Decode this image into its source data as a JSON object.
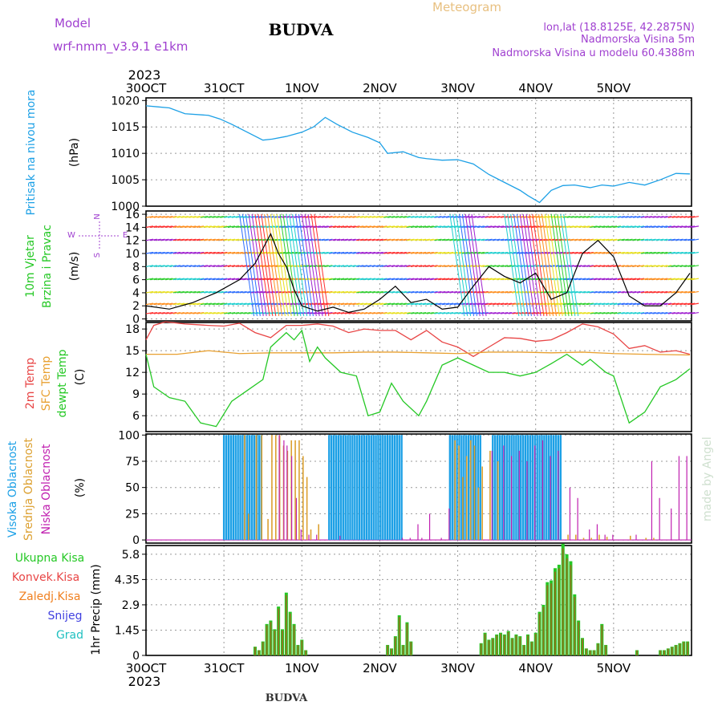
{
  "header": {
    "model_label": "Model",
    "model_name": "wrf-nmm_v3.9.1  e1km",
    "city": "BUDVA",
    "meteogram": "Meteogram",
    "lonlat": "lon,lat (18.8125E, 42.2875N)",
    "elev": "Nadmorska Visina 5m",
    "elev_model": "Nadmorska Visina u modelu 60.4388m",
    "year_top": "2023",
    "year_bottom": "2023",
    "footer": "BUDVA",
    "watermark": "made by Angel"
  },
  "colors": {
    "pressure": "#1ca0e6",
    "t2m": "#e84545",
    "sfc": "#e8a030",
    "dew": "#25c825",
    "high_cloud": "#1ca0e6",
    "mid_cloud": "#dca030",
    "low_cloud": "#c020b0",
    "precip_total": "#25c825",
    "precip_conv": "#e84545",
    "precip_frz": "#f08020",
    "snow": "#4040e0",
    "grad": "#20c0c0",
    "model": "#a040d0",
    "meteogram": "#e8c080"
  },
  "chart_data": {
    "type": "line",
    "x_labels": [
      "30OCT",
      "31OCT",
      "1NOV",
      "2NOV",
      "3NOV",
      "4NOV",
      "5NOV"
    ],
    "x_unit": "days from 30OCT 2023 00UTC",
    "panels": [
      {
        "id": "pressure",
        "ylabel": [
          "Pritisak na nivou mora",
          "(hPa)"
        ],
        "yticks": [
          "1000",
          "1005",
          "1010",
          "1015",
          "1020"
        ],
        "ylim": [
          1000,
          1020.5
        ],
        "series": [
          {
            "name": "Pritisak na nivou mora",
            "x": [
              0,
              0.15,
              0.3,
              0.5,
              0.8,
              0.95,
              1.1,
              1.3,
              1.5,
              1.62,
              1.8,
              2.0,
              2.15,
              2.3,
              2.45,
              2.65,
              2.85,
              3.0,
              3.1,
              3.3,
              3.5,
              3.6,
              3.8,
              4.0,
              4.2,
              4.4,
              4.6,
              4.8,
              4.9,
              5.05,
              5.2,
              5.35,
              5.5,
              5.7,
              5.85,
              6.0,
              6.2,
              6.4,
              6.6,
              6.8,
              6.98
            ],
            "y": [
              1019,
              1018.8,
              1018.6,
              1017.5,
              1017.2,
              1016.5,
              1015.5,
              1014,
              1012.5,
              1012.7,
              1013.2,
              1014,
              1015,
              1016.8,
              1015.5,
              1014,
              1013,
              1012,
              1010,
              1010.3,
              1009.2,
              1009,
              1008.7,
              1008.8,
              1008,
              1006,
              1004.5,
              1003,
              1002,
              1000.7,
              1003,
              1003.9,
              1004,
              1003.5,
              1004,
              1003.8,
              1004.5,
              1004,
              1005,
              1006.2,
              1006.1
            ]
          }
        ]
      },
      {
        "id": "wind",
        "ylabel": [
          "10m Vjetar",
          "Brzina i Pravac",
          "(m/s)"
        ],
        "compass": [
          "N",
          "S",
          "E",
          "W"
        ],
        "yticks": [
          "0",
          "2",
          "4",
          "6",
          "8",
          "10",
          "12",
          "14",
          "16"
        ],
        "ylim": [
          -0.3,
          16.5
        ],
        "series": [
          {
            "name": "speed",
            "x": [
              0,
              0.3,
              0.6,
              0.9,
              1.2,
              1.4,
              1.6,
              1.7,
              1.8,
              1.9,
              2.0,
              2.2,
              2.4,
              2.6,
              2.8,
              3.0,
              3.2,
              3.4,
              3.6,
              3.8,
              4.0,
              4.2,
              4.4,
              4.6,
              4.8,
              5.0,
              5.2,
              5.4,
              5.6,
              5.8,
              6.0,
              6.2,
              6.4,
              6.6,
              6.8,
              6.98
            ],
            "y": [
              2,
              1.5,
              2.5,
              4,
              6,
              8.5,
              13,
              10,
              8,
              4.5,
              2,
              1.2,
              1.8,
              1,
              1.5,
              3,
              5,
              2.5,
              3,
              1.5,
              1.8,
              5,
              8,
              6.5,
              5.5,
              7,
              3,
              4,
              10,
              12,
              9.5,
              3.5,
              2,
              2,
              4,
              7
            ]
          }
        ]
      },
      {
        "id": "temp",
        "ylabel": [
          "2m Temp",
          "SFC Temp",
          "dewpt Temp",
          "(C)"
        ],
        "yticks": [
          "6",
          "9",
          "12",
          "15",
          "18"
        ],
        "ylim": [
          3.8,
          18.9
        ],
        "series": [
          {
            "name": "2m Temp",
            "x": [
              0,
              0.1,
              0.25,
              0.5,
              0.8,
              1.0,
              1.2,
              1.4,
              1.6,
              1.8,
              2.0,
              2.2,
              2.4,
              2.6,
              2.8,
              3.0,
              3.2,
              3.4,
              3.6,
              3.8,
              4.0,
              4.2,
              4.4,
              4.6,
              4.8,
              5.0,
              5.2,
              5.4,
              5.6,
              5.8,
              6.0,
              6.2,
              6.4,
              6.6,
              6.8,
              6.98
            ],
            "y": [
              16.5,
              18.5,
              19,
              18.7,
              18.5,
              18.4,
              18.8,
              17.5,
              16.8,
              18.5,
              18.5,
              18.7,
              18.4,
              17.5,
              18,
              17.8,
              17.8,
              16.5,
              17.8,
              16.2,
              15.5,
              14.2,
              15.5,
              16.8,
              16.7,
              16.3,
              16.5,
              17.5,
              18.7,
              18.3,
              17.3,
              15.3,
              15.7,
              14.8,
              15,
              14.5
            ]
          },
          {
            "name": "SFC Temp",
            "x": [
              0,
              0.4,
              0.8,
              1.2,
              1.6,
              2.0,
              2.4,
              2.8,
              3.2,
              3.6,
              4.0,
              4.4,
              4.8,
              5.2,
              5.6,
              6.0,
              6.4,
              6.98
            ],
            "y": [
              14.5,
              14.5,
              15,
              14.6,
              14.7,
              14.7,
              14.7,
              14.8,
              14.8,
              14.7,
              14.6,
              14.8,
              14.8,
              14.7,
              14.8,
              14.6,
              14.5,
              14.4
            ]
          },
          {
            "name": "dewpt Temp",
            "x": [
              0,
              0.1,
              0.3,
              0.5,
              0.7,
              0.9,
              1.1,
              1.3,
              1.5,
              1.6,
              1.8,
              1.9,
              2.0,
              2.1,
              2.2,
              2.3,
              2.5,
              2.7,
              2.85,
              3.0,
              3.15,
              3.3,
              3.5,
              3.6,
              3.8,
              4.0,
              4.2,
              4.4,
              4.6,
              4.8,
              5.0,
              5.2,
              5.4,
              5.6,
              5.7,
              5.9,
              6.0,
              6.2,
              6.4,
              6.6,
              6.8,
              6.98
            ],
            "y": [
              14.5,
              10,
              8.5,
              8,
              5,
              4.5,
              8,
              9.5,
              11,
              15.5,
              17.5,
              16.5,
              17.8,
              13.5,
              15.5,
              14,
              12,
              11.5,
              6,
              6.5,
              10.5,
              8,
              6,
              8,
              13,
              14,
              13,
              12,
              12,
              11.5,
              12,
              13.2,
              14.5,
              13,
              13.8,
              12,
              11.5,
              5,
              6.5,
              10,
              11,
              12.5
            ]
          }
        ]
      },
      {
        "id": "cloud",
        "ylabel": [
          "Visoka Oblacnost",
          "Srednja Oblacnost",
          "Niska Oblacnost",
          "(%)"
        ],
        "yticks": [
          "0",
          "25",
          "50",
          "75",
          "100"
        ],
        "ylim": [
          -3,
          101
        ],
        "bands": [
          {
            "series": "Visoka Oblacnost",
            "from": 1.0,
            "to": 1.5,
            "value": 100
          },
          {
            "series": "Visoka Oblacnost",
            "from": 2.35,
            "to": 3.3,
            "value": 100
          },
          {
            "series": "Visoka Oblacnost",
            "from": 3.9,
            "to": 4.3,
            "value": 100
          },
          {
            "series": "Visoka Oblacnost",
            "from": 4.45,
            "to": 5.35,
            "value": 100
          }
        ],
        "series": [
          {
            "name": "Srednja Oblacnost",
            "x": [
              1.25,
              1.3,
              1.4,
              1.47,
              1.55,
              1.6,
              1.65,
              1.7,
              1.75,
              1.8,
              1.85,
              1.9,
              1.95,
              2.0,
              2.05,
              2.1,
              2.2,
              3.95,
              4.0,
              4.05,
              4.1,
              4.15,
              4.2,
              4.25,
              4.3,
              4.4,
              4.5,
              5.4,
              5.5,
              5.6,
              5.7,
              5.8,
              5.9,
              6.2,
              6.4,
              6.5
            ],
            "y": [
              100,
              25,
              100,
              100,
              20,
              100,
              100,
              100,
              90,
              85,
              95,
              95,
              95,
              80,
              60,
              10,
              15,
              95,
              90,
              60,
              80,
              95,
              90,
              50,
              70,
              85,
              75,
              5,
              5,
              2,
              2,
              5,
              3,
              4,
              2,
              2
            ]
          },
          {
            "name": "Niska Oblacnost",
            "x": [
              1.72,
              1.78,
              1.82,
              1.88,
              1.94,
              2.0,
              2.1,
              2.2,
              2.5,
              3.3,
              3.4,
              3.5,
              3.55,
              3.65,
              3.8,
              3.9,
              4.45,
              4.6,
              4.7,
              4.8,
              4.9,
              5.0,
              5.1,
              5.2,
              5.3,
              5.45,
              5.55,
              5.7,
              5.8,
              5.9,
              6.0,
              6.3,
              6.5,
              6.6,
              6.75,
              6.85,
              6.95
            ],
            "y": [
              100,
              95,
              90,
              80,
              40,
              10,
              5,
              5,
              4,
              2,
              2,
              15,
              2,
              25,
              2,
              30,
              85,
              90,
              80,
              85,
              75,
              90,
              95,
              80,
              85,
              50,
              40,
              10,
              15,
              5,
              5,
              5,
              75,
              40,
              30,
              80,
              80
            ]
          }
        ]
      },
      {
        "id": "precip",
        "ylabel": [
          "1hr Precip (mm)"
        ],
        "yticks": [
          "0",
          "1.45",
          "2.9",
          "4.35",
          "5.8"
        ],
        "ylim": [
          0,
          6.3
        ],
        "legend": [
          "Ukupna Kisa",
          "Konvek.Kisa",
          "Zaledj.Kisa",
          "Snijeg",
          "Grad"
        ],
        "series": [
          {
            "name": "Ukupna Kisa",
            "x": [
              1.4,
              1.45,
              1.5,
              1.55,
              1.6,
              1.65,
              1.7,
              1.75,
              1.8,
              1.85,
              1.9,
              1.95,
              2.0,
              2.05,
              3.1,
              3.15,
              3.2,
              3.25,
              3.3,
              3.35,
              3.4,
              4.3,
              4.35,
              4.4,
              4.45,
              4.5,
              4.55,
              4.6,
              4.65,
              4.7,
              4.75,
              4.8,
              4.85,
              4.9,
              4.95,
              5.0,
              5.05,
              5.1,
              5.15,
              5.2,
              5.25,
              5.3,
              5.35,
              5.4,
              5.45,
              5.5,
              5.55,
              5.6,
              5.65,
              5.7,
              5.75,
              5.8,
              5.85,
              5.9,
              6.3,
              6.6,
              6.65,
              6.7,
              6.75,
              6.8,
              6.85,
              6.9,
              6.95
            ],
            "y": [
              0.5,
              0.3,
              0.8,
              1.8,
              2.0,
              1.5,
              2.8,
              1.5,
              3.6,
              2.5,
              1.8,
              0.6,
              0.9,
              0.3,
              0.6,
              0.4,
              1.1,
              2.3,
              0.6,
              1.9,
              0.8,
              0.7,
              1.3,
              0.9,
              1.0,
              1.2,
              1.3,
              1.2,
              1.4,
              1.0,
              1.2,
              1.1,
              0.6,
              1.2,
              0.8,
              1.3,
              2.5,
              2.9,
              4.2,
              4.3,
              5.0,
              5.2,
              6.4,
              5.8,
              5.4,
              3.5,
              2.0,
              1.0,
              0.4,
              0.3,
              0.3,
              0.7,
              1.8,
              0.6,
              0.3,
              0.3,
              0.3,
              0.4,
              0.5,
              0.6,
              0.7,
              0.8,
              0.8
            ]
          }
        ]
      }
    ]
  }
}
